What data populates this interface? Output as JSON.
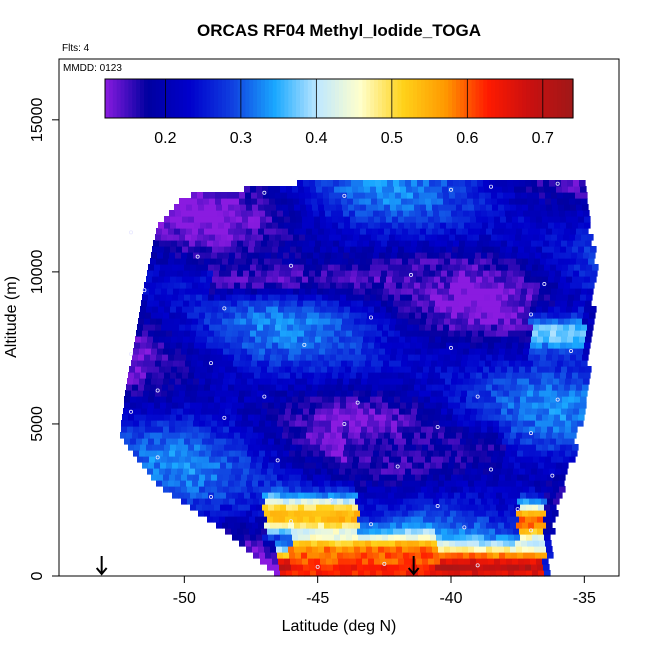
{
  "chart_data": {
    "type": "heatmap",
    "title": "ORCAS RF04 Methyl_Iodide_TOGA",
    "flights_label": "Flts: 4",
    "date_label": "MMDD: 0123",
    "xlabel": "Latitude (deg N)",
    "ylabel": "Altitude (m)",
    "xlim": [
      -54.7,
      -33.7
    ],
    "ylim": [
      0,
      17000
    ],
    "x_ticks": [
      -50,
      -45,
      -40,
      -35
    ],
    "x_tick_labels": [
      "-50",
      "-45",
      "-40",
      "-35"
    ],
    "y_ticks": [
      0,
      5000,
      10000,
      15000
    ],
    "y_tick_labels": [
      "0",
      "5000",
      "10000",
      "15000"
    ],
    "colorbar": {
      "range": [
        0.12,
        0.74
      ],
      "ticks": [
        0.2,
        0.3,
        0.4,
        0.5,
        0.6,
        0.7
      ],
      "tick_labels": [
        "0.2",
        "0.3",
        "0.4",
        "0.5",
        "0.6",
        "0.7"
      ],
      "colors": [
        "#8a1be0",
        "#0000a0",
        "#0000cc",
        "#1040e0",
        "#1aa8ff",
        "#bfe8ff",
        "#ffffcc",
        "#ffd21a",
        "#ff9900",
        "#ff1a00",
        "#c81010",
        "#a01818"
      ]
    },
    "domain": {
      "lat_min_by_alt": [
        [
          0,
          -46.5
        ],
        [
          1500,
          -48.5
        ],
        [
          3000,
          -51.0
        ],
        [
          4600,
          -52.4
        ],
        [
          6000,
          -52.2
        ],
        [
          9500,
          -51.5
        ],
        [
          11500,
          -51.0
        ],
        [
          12500,
          -50.0
        ],
        [
          13000,
          -45.0
        ]
      ],
      "lat_max_by_alt": [
        [
          0,
          -36.5
        ],
        [
          2000,
          -36.2
        ],
        [
          4000,
          -35.5
        ],
        [
          6000,
          -35.0
        ],
        [
          8000,
          -34.9
        ],
        [
          10000,
          -34.6
        ],
        [
          12000,
          -35.0
        ],
        [
          13000,
          -35.0
        ]
      ],
      "alt_top": 13000
    },
    "layers": [
      {
        "alt": 300,
        "lat_from": -46.5,
        "lat_to": -36.5,
        "value": 0.7
      },
      {
        "alt": 700,
        "lat_from": -46.0,
        "lat_to": -40.5,
        "value": 0.6
      },
      {
        "alt": 2000,
        "lat_from": -47.0,
        "lat_to": -43.5,
        "value": 0.55
      },
      {
        "alt": 1800,
        "lat_from": -37.5,
        "lat_to": -36.5,
        "value": 0.6
      },
      {
        "alt": 9800,
        "lat_from": -49.0,
        "lat_to": -40.0,
        "value": 0.15
      },
      {
        "alt": 4200,
        "lat_from": -44.0,
        "lat_to": -38.0,
        "value": 0.17
      },
      {
        "alt": 8000,
        "lat_from": -37.0,
        "lat_to": -35.0,
        "value": 0.38
      }
    ],
    "flight_markers": [
      -53.1,
      -41.4
    ],
    "sample_points": [
      [
        -47.0,
        12600
      ],
      [
        -44.0,
        12500
      ],
      [
        -40.0,
        12700
      ],
      [
        -38.5,
        12800
      ],
      [
        -36.0,
        12900
      ],
      [
        -52.0,
        11300
      ],
      [
        -49.5,
        10500
      ],
      [
        -46.0,
        10200
      ],
      [
        -41.5,
        9900
      ],
      [
        -36.5,
        9600
      ],
      [
        -51.5,
        9400
      ],
      [
        -48.5,
        8800
      ],
      [
        -43.0,
        8500
      ],
      [
        -37.0,
        8600
      ],
      [
        -52.0,
        7300
      ],
      [
        -49.0,
        7000
      ],
      [
        -45.5,
        7600
      ],
      [
        -40.0,
        7500
      ],
      [
        -35.5,
        7400
      ],
      [
        -51.0,
        6100
      ],
      [
        -47.0,
        5900
      ],
      [
        -43.5,
        5700
      ],
      [
        -39.0,
        5900
      ],
      [
        -36.0,
        5800
      ],
      [
        -52.0,
        5400
      ],
      [
        -48.5,
        5200
      ],
      [
        -44.0,
        5000
      ],
      [
        -40.5,
        4900
      ],
      [
        -37.0,
        4700
      ],
      [
        -51.0,
        3900
      ],
      [
        -46.5,
        3800
      ],
      [
        -42.0,
        3600
      ],
      [
        -38.5,
        3500
      ],
      [
        -36.2,
        3300
      ],
      [
        -49.0,
        2600
      ],
      [
        -44.5,
        2500
      ],
      [
        -40.5,
        2300
      ],
      [
        -37.5,
        2200
      ],
      [
        -46.0,
        1800
      ],
      [
        -43.0,
        1700
      ],
      [
        -39.5,
        1600
      ],
      [
        -37.0,
        1500
      ],
      [
        -45.0,
        300
      ],
      [
        -42.5,
        400
      ],
      [
        -39.0,
        350
      ]
    ]
  }
}
